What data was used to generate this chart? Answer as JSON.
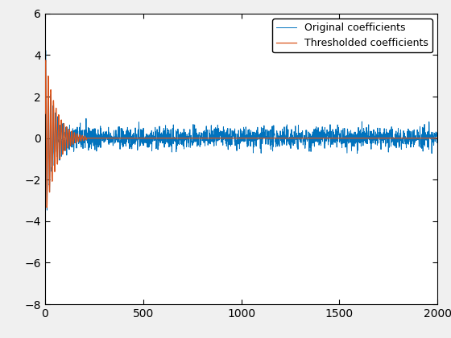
{
  "title": "",
  "xlim": [
    0,
    2000
  ],
  "ylim": [
    -8,
    6
  ],
  "yticks": [
    -8,
    -6,
    -4,
    -2,
    0,
    2,
    4,
    6
  ],
  "xticks": [
    0,
    500,
    1000,
    1500,
    2000
  ],
  "original_color": "#0072BD",
  "thresholded_color": "#D95319",
  "legend_labels": [
    "Original coefficients",
    "Thresholded coefficients"
  ],
  "n_points": 2000,
  "seed": 42,
  "figsize": [
    5.6,
    4.2
  ],
  "dpi": 100,
  "bg_color": "#F0F0F0",
  "axes_bg_color": "#FFFFFF"
}
